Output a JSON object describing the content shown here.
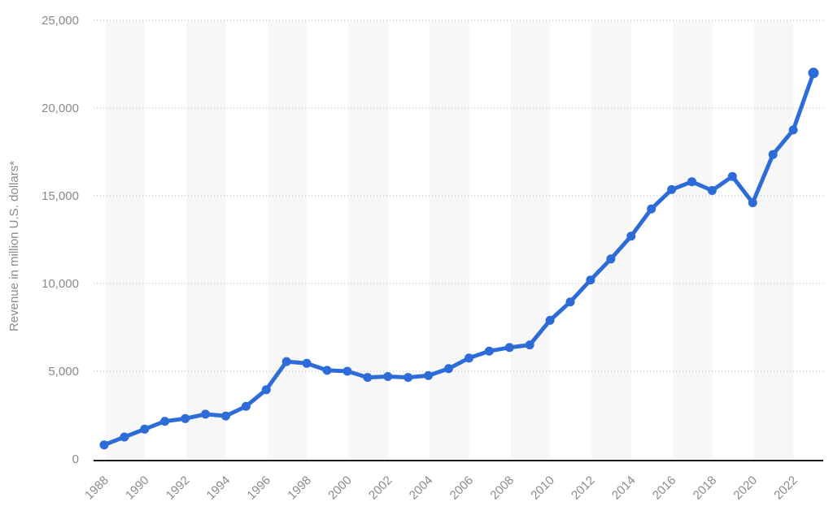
{
  "chart_data": {
    "type": "line",
    "title": "",
    "ylabel": "Revenue in million U.S. dollars*",
    "xlabel": "",
    "x": [
      1988,
      1989,
      1990,
      1991,
      1992,
      1993,
      1994,
      1995,
      1996,
      1997,
      1998,
      1999,
      2000,
      2001,
      2002,
      2003,
      2004,
      2005,
      2006,
      2007,
      2008,
      2009,
      2010,
      2011,
      2012,
      2013,
      2014,
      2015,
      2016,
      2017,
      2018,
      2019,
      2020,
      2021,
      2022,
      2023
    ],
    "series": [
      {
        "name": "Revenue",
        "values": [
          800,
          1250,
          1700,
          2150,
          2300,
          2550,
          2450,
          3000,
          3950,
          5550,
          5450,
          5050,
          5000,
          4650,
          4700,
          4650,
          4750,
          5150,
          5750,
          6150,
          6350,
          6500,
          7900,
          8950,
          10200,
          11400,
          12700,
          14250,
          15350,
          15800,
          15300,
          16100,
          14600,
          17350,
          18750,
          22000
        ]
      }
    ],
    "ylim": [
      0,
      25000
    ],
    "ytick_step": 5000,
    "ytick_labels": [
      "0",
      "5,000",
      "10,000",
      "15,000",
      "20,000",
      "25,000"
    ],
    "xtick_labels": [
      "1988",
      "1990",
      "1992",
      "1994",
      "1996",
      "1998",
      "2000",
      "2002",
      "2004",
      "2006",
      "2008",
      "2010",
      "2012",
      "2014",
      "2016",
      "2018",
      "2020",
      "2022"
    ],
    "grid": "horizontal-dotted",
    "legend": "none",
    "plot_background": "alternating-vertical-stripes"
  },
  "colors": {
    "line": "#2d6cd8",
    "point": "#2d6cd8",
    "grid": "#c8c8c8",
    "axis": "#1a1a1a",
    "tick_text": "#8a8a8a",
    "stripe": "#f7f7f7",
    "background": "#ffffff"
  }
}
